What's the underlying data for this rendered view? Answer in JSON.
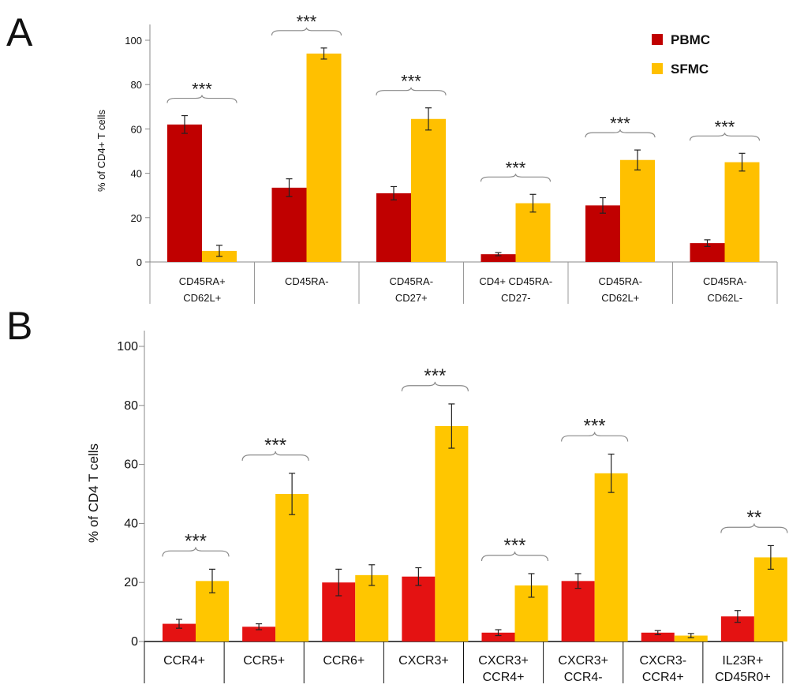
{
  "colors": {
    "PBMC": "#c00000",
    "SFMC_A": "#ffc000",
    "PBMC_B": "#e41212",
    "SFMC_B": "#ffc600"
  },
  "chart_data": [
    {
      "panel": "A",
      "type": "bar",
      "ylabel": "% of CD4+ T cells",
      "ylim": [
        0,
        100
      ],
      "yticks": [
        0,
        20,
        40,
        60,
        80,
        100
      ],
      "legend": {
        "position": "top-right",
        "entries": [
          "PBMC",
          "SFMC"
        ]
      },
      "categories": [
        [
          "CD45RA+",
          "CD62L+"
        ],
        [
          "CD45RA-"
        ],
        [
          "CD45RA-",
          "CD27+"
        ],
        [
          "CD4+ CD45RA-",
          "CD27-"
        ],
        [
          "CD45RA-",
          "CD62L+"
        ],
        [
          "CD45RA-",
          "CD62L-"
        ]
      ],
      "series": [
        {
          "name": "PBMC",
          "values": [
            62,
            33.5,
            31,
            3.5,
            25.5,
            8.5
          ],
          "errors": [
            4,
            4,
            3,
            0.7,
            3.5,
            1.5
          ]
        },
        {
          "name": "SFMC",
          "values": [
            5,
            94,
            64.5,
            26.5,
            46,
            45
          ],
          "errors": [
            2.5,
            2.5,
            5,
            4,
            4.5,
            4
          ]
        }
      ],
      "significance": [
        "***",
        "***",
        "***",
        "***",
        "***",
        "***"
      ]
    },
    {
      "panel": "B",
      "type": "bar",
      "ylabel": "% of CD4 T cells",
      "ylim": [
        0,
        100
      ],
      "yticks": [
        0,
        20,
        40,
        60,
        80,
        100
      ],
      "categories": [
        [
          "CCR4+"
        ],
        [
          "CCR5+"
        ],
        [
          "CCR6+"
        ],
        [
          "CXCR3+"
        ],
        [
          "CXCR3+",
          "CCR4+"
        ],
        [
          "CXCR3+",
          "CCR4-"
        ],
        [
          "CXCR3-",
          "CCR4+"
        ],
        [
          "IL23R+",
          "CD45R0+"
        ]
      ],
      "series": [
        {
          "name": "PBMC",
          "values": [
            6,
            5,
            20,
            22,
            3,
            20.5,
            3,
            8.5
          ],
          "errors": [
            1.5,
            1,
            4.5,
            3,
            1,
            2.5,
            0.7,
            2
          ]
        },
        {
          "name": "SFMC",
          "values": [
            20.5,
            50,
            22.5,
            73,
            19,
            57,
            2,
            28.5
          ],
          "errors": [
            4,
            7,
            3.5,
            7.5,
            4,
            6.5,
            0.7,
            4
          ]
        }
      ],
      "significance": [
        "***",
        "***",
        "",
        "***",
        "***",
        "***",
        "",
        "**"
      ]
    }
  ]
}
